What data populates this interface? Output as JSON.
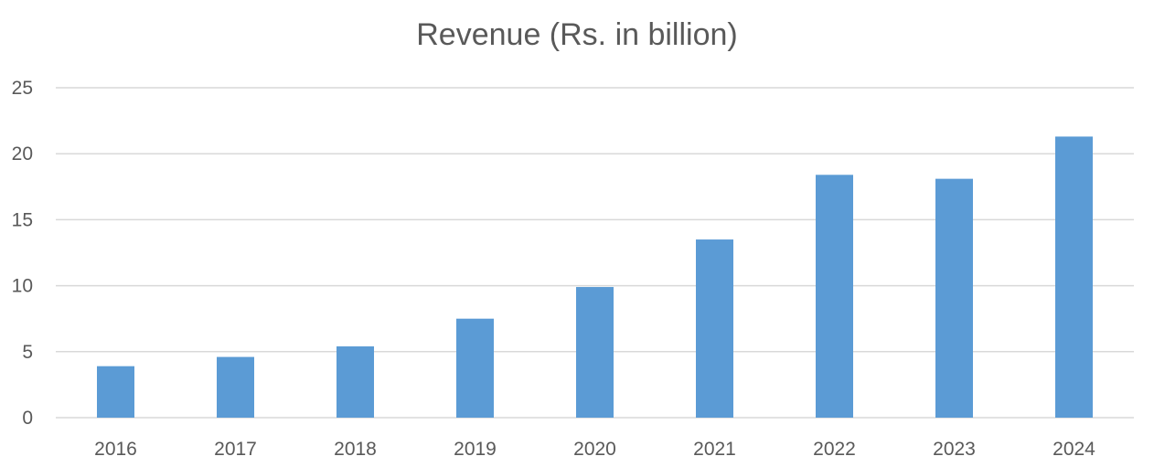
{
  "chart_data": {
    "type": "bar",
    "title": "Revenue (Rs. in billion)",
    "xlabel": "",
    "ylabel": "",
    "categories": [
      "2016",
      "2017",
      "2018",
      "2019",
      "2020",
      "2021",
      "2022",
      "2023",
      "2024"
    ],
    "values": [
      3.9,
      4.6,
      5.4,
      7.5,
      9.9,
      13.5,
      18.4,
      18.1,
      21.3
    ],
    "ylim": [
      0,
      25
    ],
    "yticks": [
      "0",
      "5",
      "10",
      "15",
      "20",
      "25"
    ],
    "grid": true,
    "legend": "none",
    "bar_color": "#5b9bd5"
  }
}
